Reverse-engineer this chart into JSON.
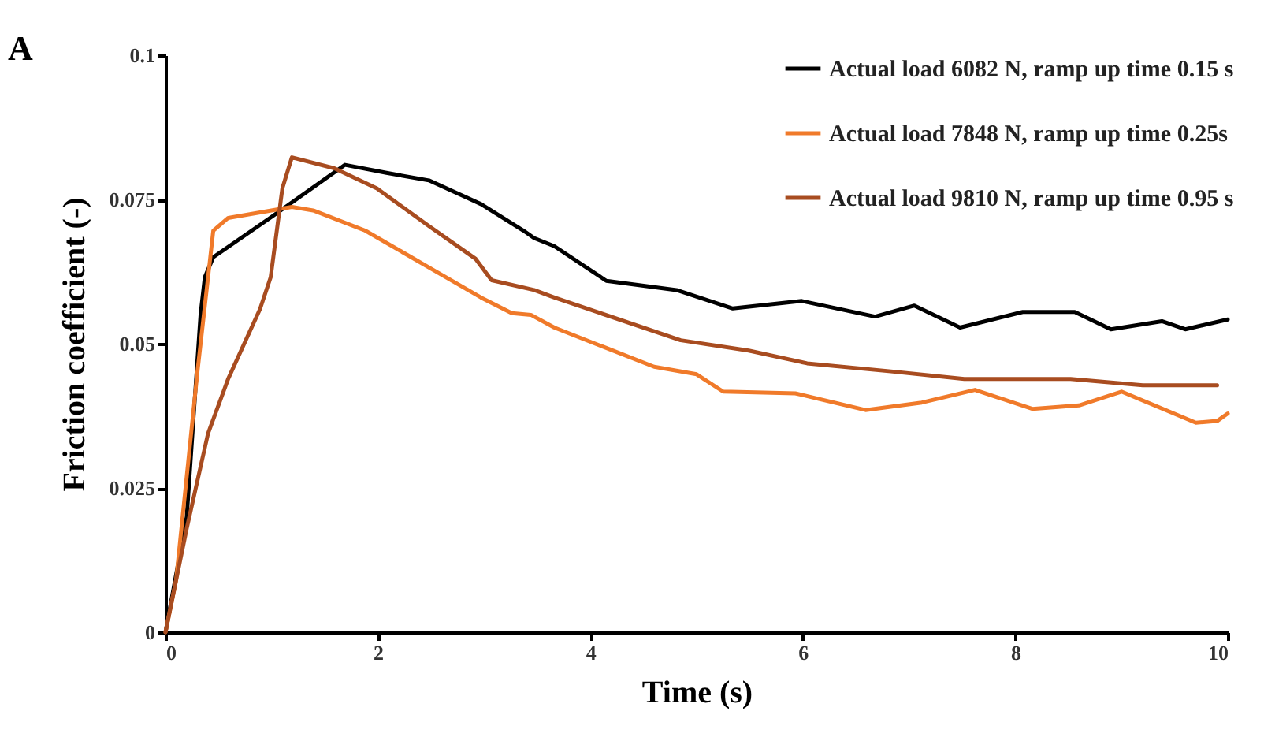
{
  "chart_data": {
    "type": "line",
    "title": "A",
    "xlabel": "Time (s)",
    "ylabel": "Friction coefficient (-)",
    "xlim": [
      0,
      10
    ],
    "xticks": [
      0,
      2,
      4,
      6,
      8,
      10
    ],
    "ylim": [
      0,
      0.1
    ],
    "yticks": [
      0,
      0.025,
      0.05,
      0.075,
      0.1
    ],
    "grid": false,
    "legend": "top right",
    "line_style": "solid",
    "marker": "none",
    "series": [
      {
        "name": "Actual load 6082 N, ramp up time 0.15 s",
        "color": "#000000",
        "x": [
          0,
          0.2,
          0.33,
          0.37,
          0.45,
          1.0,
          1.69,
          2.08,
          2.48,
          2.97,
          3.37,
          3.47,
          3.66,
          4.15,
          4.81,
          5.34,
          5.99,
          6.68,
          7.05,
          7.48,
          8.07,
          8.56,
          8.9,
          9.38,
          9.6,
          10
        ],
        "values": [
          0,
          0.02,
          0.055,
          0.0615,
          0.065,
          0.072,
          0.081,
          0.0796,
          0.0783,
          0.0742,
          0.0696,
          0.0683,
          0.0669,
          0.0609,
          0.0593,
          0.0561,
          0.0574,
          0.0547,
          0.0566,
          0.0528,
          0.0555,
          0.0555,
          0.0525,
          0.0539,
          0.0525,
          0.0542
        ]
      },
      {
        "name": "Actual load 7848 N, ramp up time 0.25s",
        "color": "#f07a2a",
        "x": [
          0,
          0.1,
          0.3,
          0.45,
          0.59,
          1.19,
          1.39,
          1.88,
          2.52,
          2.97,
          3.26,
          3.44,
          3.66,
          4.6,
          5.0,
          5.25,
          5.93,
          6.59,
          7.12,
          7.62,
          8.16,
          8.6,
          9.0,
          9.7,
          9.9,
          10
        ],
        "values": [
          0,
          0.009,
          0.045,
          0.0696,
          0.0718,
          0.0737,
          0.0731,
          0.0696,
          0.0628,
          0.058,
          0.0553,
          0.055,
          0.0528,
          0.046,
          0.0447,
          0.0417,
          0.0414,
          0.0385,
          0.0398,
          0.042,
          0.0387,
          0.0393,
          0.0417,
          0.0363,
          0.0366,
          0.0379
        ]
      },
      {
        "name": "Actual load 9810 N, ramp up time 0.95 s",
        "color": "#a84c20",
        "x": [
          0,
          0.2,
          0.4,
          0.59,
          0.89,
          0.99,
          1.1,
          1.19,
          1.59,
          1.99,
          2.48,
          2.92,
          3.07,
          3.47,
          3.66,
          4.85,
          5.49,
          6.04,
          6.83,
          7.52,
          8.52,
          9.2,
          9.9
        ],
        "values": [
          0,
          0.018,
          0.0344,
          0.0439,
          0.056,
          0.0615,
          0.0769,
          0.0823,
          0.0804,
          0.0769,
          0.0704,
          0.0647,
          0.061,
          0.0593,
          0.058,
          0.0506,
          0.0488,
          0.0466,
          0.0452,
          0.0439,
          0.0439,
          0.0428,
          0.0428
        ]
      }
    ]
  }
}
